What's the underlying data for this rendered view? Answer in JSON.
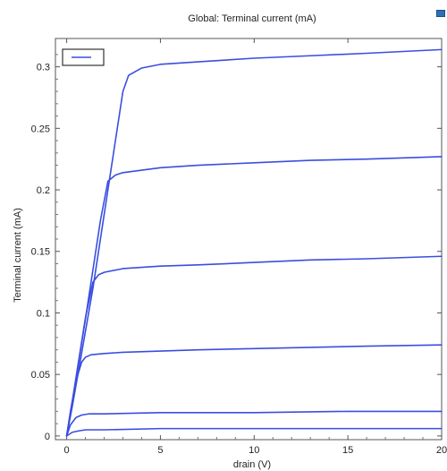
{
  "chart_data": {
    "type": "line",
    "title": "Global: Terminal current (mA)",
    "xlabel": "drain (V)",
    "ylabel": "Terminal current (mA)",
    "xlim": [
      -0.6,
      20
    ],
    "ylim": [
      -0.003,
      0.323
    ],
    "xticks": [
      0,
      5,
      10,
      15,
      20
    ],
    "xtick_labels": [
      "0",
      "5",
      "10",
      "15",
      "20"
    ],
    "yticks": [
      0,
      0.05,
      0.1,
      0.15,
      0.2,
      0.25,
      0.3
    ],
    "ytick_labels": [
      "0",
      "0.05",
      "0.1",
      "0.15",
      "0.2",
      "0.25",
      "0.3"
    ],
    "grid": true,
    "legend": "top-left",
    "line_color": "#3a4ee0",
    "series": [
      {
        "name": "",
        "x": [
          0,
          0.3,
          0.6,
          1.0,
          1.4,
          1.8,
          2.2,
          2.6,
          3.0,
          3.3,
          4,
          5,
          7,
          10,
          13,
          16,
          20
        ],
        "y": [
          0,
          0.024,
          0.05,
          0.085,
          0.12,
          0.16,
          0.2,
          0.24,
          0.28,
          0.293,
          0.299,
          0.302,
          0.304,
          0.307,
          0.309,
          0.311,
          0.314
        ]
      },
      {
        "name": "",
        "x": [
          0,
          0.3,
          0.6,
          1.0,
          1.4,
          1.8,
          2.2,
          2.6,
          3,
          4,
          5,
          7,
          10,
          13,
          16,
          20
        ],
        "y": [
          0,
          0.028,
          0.057,
          0.095,
          0.135,
          0.175,
          0.207,
          0.212,
          0.214,
          0.216,
          0.218,
          0.22,
          0.222,
          0.224,
          0.225,
          0.227
        ]
      },
      {
        "name": "",
        "x": [
          0,
          0.3,
          0.6,
          1.0,
          1.4,
          1.7,
          2,
          3,
          5,
          7,
          10,
          13,
          16,
          20
        ],
        "y": [
          0,
          0.028,
          0.057,
          0.096,
          0.125,
          0.131,
          0.133,
          0.136,
          0.138,
          0.139,
          0.141,
          0.143,
          0.144,
          0.146
        ]
      },
      {
        "name": "",
        "x": [
          0,
          0.2,
          0.5,
          0.8,
          1.0,
          1.3,
          2,
          3,
          5,
          7,
          10,
          13,
          16,
          20
        ],
        "y": [
          0,
          0.02,
          0.045,
          0.06,
          0.064,
          0.066,
          0.067,
          0.068,
          0.069,
          0.07,
          0.071,
          0.072,
          0.073,
          0.074
        ]
      },
      {
        "name": "",
        "x": [
          0,
          0.2,
          0.5,
          0.8,
          1.2,
          2,
          5,
          10,
          15,
          20
        ],
        "y": [
          0,
          0.009,
          0.015,
          0.017,
          0.018,
          0.018,
          0.019,
          0.019,
          0.02,
          0.02
        ]
      },
      {
        "name": "",
        "x": [
          0,
          0.3,
          0.6,
          1.0,
          2,
          5,
          10,
          15,
          20
        ],
        "y": [
          0,
          0.003,
          0.004,
          0.005,
          0.005,
          0.006,
          0.006,
          0.006,
          0.006
        ]
      }
    ]
  }
}
